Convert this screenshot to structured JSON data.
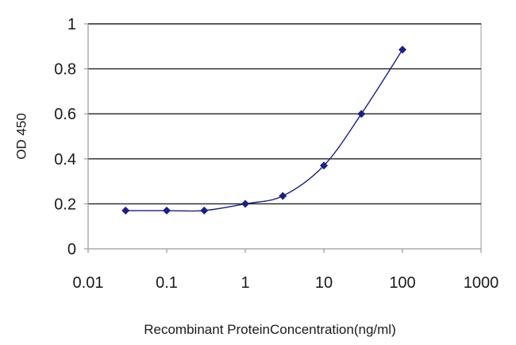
{
  "chart_data": {
    "type": "line",
    "title": "",
    "xlabel": "Recombinant ProteinConcentration(ng/ml)",
    "ylabel": "OD 450",
    "x_scale": "log",
    "xlim": [
      0.01,
      1000
    ],
    "ylim": [
      0,
      1
    ],
    "x_ticks": [
      "0.01",
      "0.1",
      "1",
      "10",
      "100",
      "1000"
    ],
    "y_ticks": [
      "0",
      "0.2",
      "0.4",
      "0.6",
      "0.8",
      "1"
    ],
    "grid": "horizontal",
    "legend": "none",
    "series": [
      {
        "x": [
          0.03,
          0.1,
          0.3,
          1,
          3,
          10,
          30,
          100
        ],
        "y": [
          0.17,
          0.17,
          0.17,
          0.2,
          0.235,
          0.37,
          0.6,
          0.885
        ]
      }
    ],
    "colors": {
      "line": "#1a1f8a",
      "marker": "#1a1f8a",
      "plot_background": "#ffffff",
      "gridline": "#222222",
      "frame": "#9a9a9a"
    }
  }
}
